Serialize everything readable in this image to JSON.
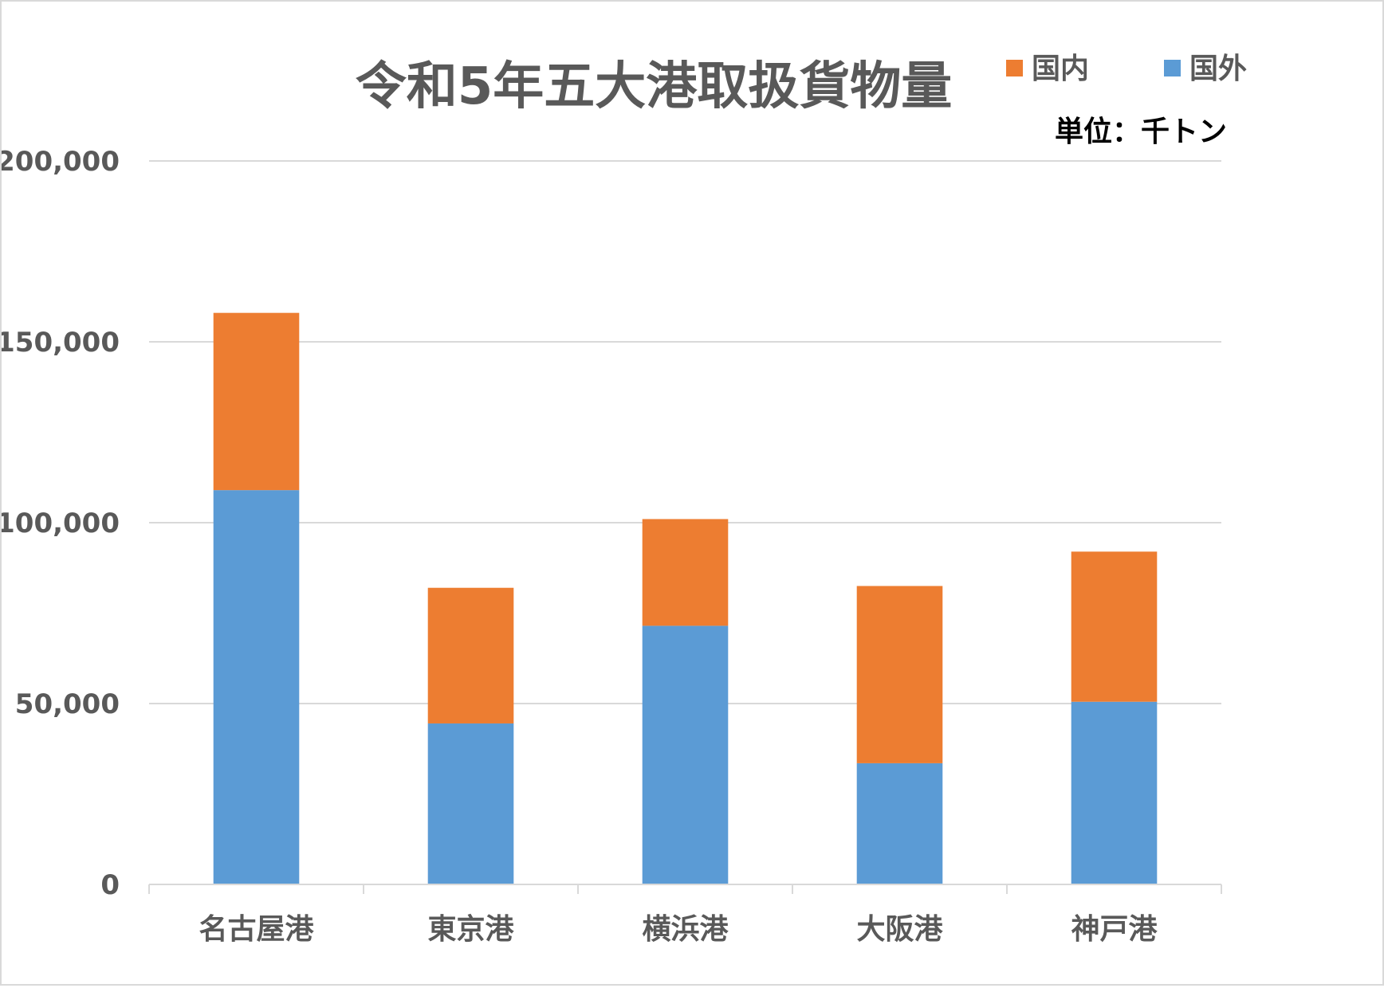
{
  "chart_data": {
    "type": "bar",
    "stacked": true,
    "title": "令和5年五大港取扱貨物量",
    "unit_label": "単位：千トン",
    "categories": [
      "名古屋港",
      "東京港",
      "横浜港",
      "大阪港",
      "神戸港"
    ],
    "series": [
      {
        "name": "国外",
        "color": "#5b9bd5",
        "values": [
          109000,
          44500,
          71500,
          33500,
          50500
        ]
      },
      {
        "name": "国内",
        "color": "#ed7d31",
        "values": [
          49000,
          37500,
          29500,
          49000,
          41500
        ]
      }
    ],
    "legend_order": [
      "国内",
      "国外"
    ],
    "legend_position": "top-right",
    "ylim": [
      0,
      200000
    ],
    "yticks": [
      0,
      50000,
      100000,
      150000,
      200000
    ],
    "ytick_labels": [
      "0",
      "50,000",
      "100,000",
      "150,000",
      "200,000"
    ],
    "grid": true,
    "xlabel": "",
    "ylabel": ""
  }
}
